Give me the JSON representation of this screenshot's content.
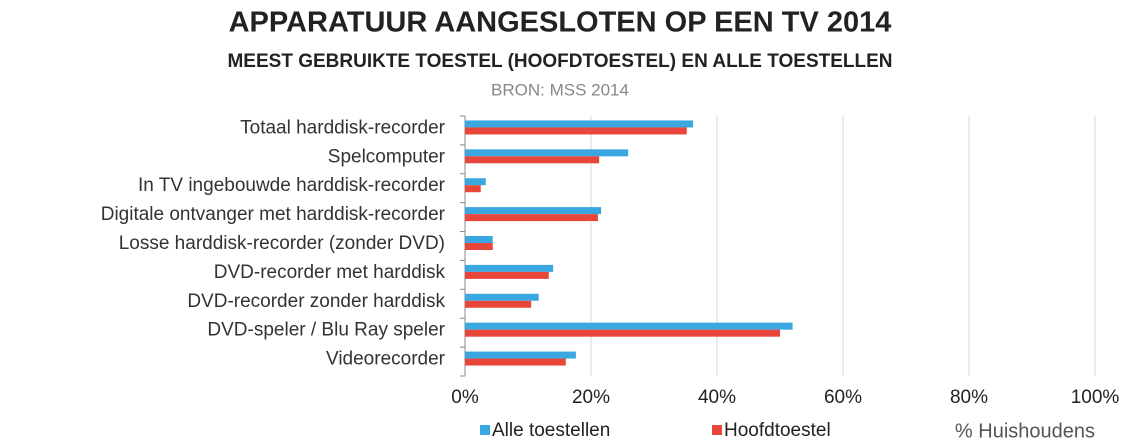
{
  "chart_data": {
    "type": "barh",
    "title": "APPARATUUR AANGESLOTEN OP EEN TV 2014",
    "subtitle": "MEEST GEBRUIKTE TOESTEL (HOOFDTOESTEL) EN ALLE TOESTELLEN",
    "source": "BRON: MSS 2014",
    "xlabel": "% Huishoudens",
    "categories": [
      "Totaal harddisk-recorder",
      "Spelcomputer",
      "In TV ingebouwde harddisk-recorder",
      "Digitale ontvanger met harddisk-recorder",
      "Losse harddisk-recorder (zonder DVD)",
      "DVD-recorder met harddisk",
      "DVD-recorder zonder harddisk",
      "DVD-speler / Blu Ray speler",
      "Videorecorder"
    ],
    "series": [
      {
        "name": "Alle toestellen",
        "color": "#3ba7e0",
        "values": [
          36.2,
          25.9,
          3.3,
          21.6,
          4.4,
          14,
          11.7,
          52,
          17.6
        ]
      },
      {
        "name": "Hoofdtoestel",
        "color": "#e8463a",
        "values": [
          35.2,
          21.3,
          2.5,
          21.1,
          4.4,
          13.3,
          10.5,
          50,
          16
        ]
      }
    ],
    "xlim": [
      0,
      100
    ],
    "xticks": [
      {
        "value": 0,
        "label": "0%"
      },
      {
        "value": 20,
        "label": "20%"
      },
      {
        "value": 40,
        "label": "40%"
      },
      {
        "value": 60,
        "label": "60%"
      },
      {
        "value": 80,
        "label": "80%"
      },
      {
        "value": 100,
        "label": "100%"
      }
    ],
    "grid": true,
    "legend": "bottom"
  }
}
